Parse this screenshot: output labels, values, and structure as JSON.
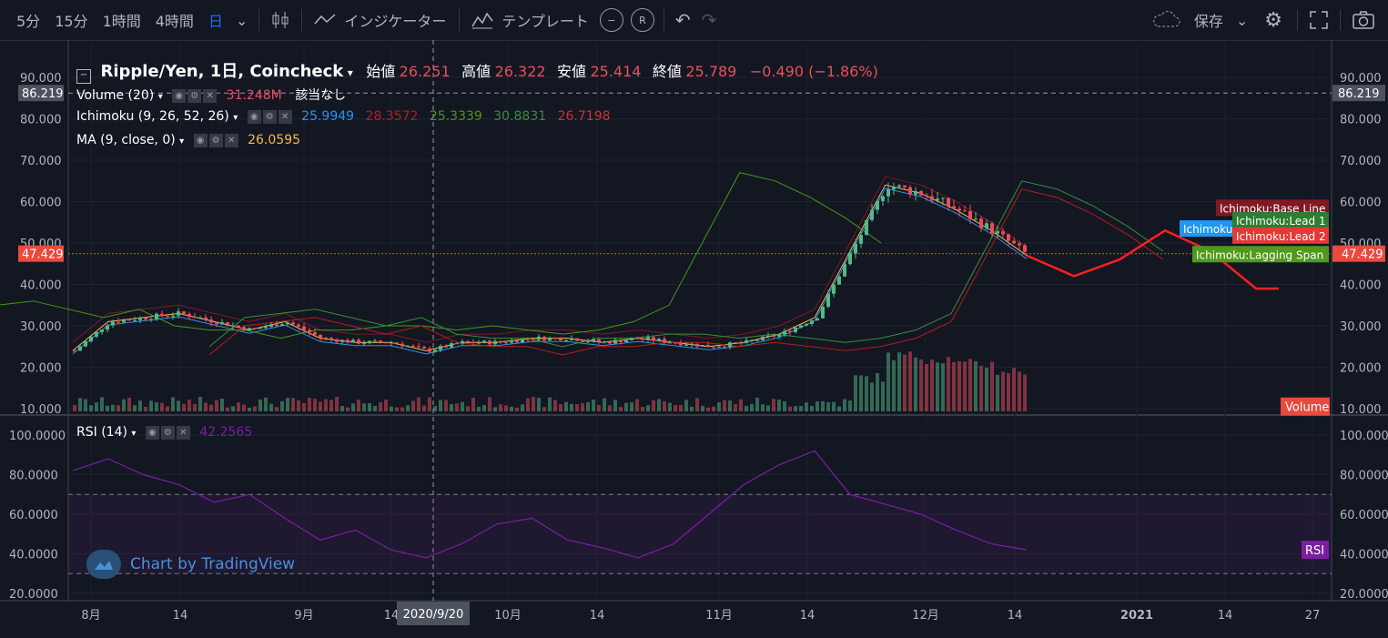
{
  "toolbar": {
    "intervals": [
      "5分",
      "15分",
      "1時間",
      "4時間",
      "日"
    ],
    "active_interval": "日",
    "indicators_label": "インジケーター",
    "template_label": "テンプレート",
    "save_label": "保存"
  },
  "legend": {
    "symbol": "Ripple/Yen, 1日, Coincheck",
    "open_label": "始値",
    "open": "26.251",
    "high_label": "高値",
    "high": "26.322",
    "low_label": "安値",
    "low": "25.414",
    "close_label": "終値",
    "close": "25.789",
    "change": "−0.490 (−1.86%)",
    "volume_name": "Volume (20)",
    "volume_value": "31.248M",
    "volume_extra": "該当なし",
    "ichimoku_name": "Ichimoku (9, 26, 52, 26)",
    "ichimoku_values": [
      "25.9949",
      "28.3572",
      "25.3339",
      "30.8831",
      "26.7198"
    ],
    "ma_name": "MA (9, close, 0)",
    "ma_value": "26.0595",
    "rsi_name": "RSI (14)",
    "rsi_value": "42.2565"
  },
  "watermark": "Chart by TradingView",
  "colors": {
    "background": "#131722",
    "up": "#53b987",
    "down": "#eb4d5c",
    "conversion": "#2196f3",
    "base": "#801922",
    "lagging": "#459915",
    "lead1": "#388e3c",
    "lead2": "#b71c1c",
    "ma": "#ffb74d",
    "rsi": "#7b1fa2",
    "price_marker": "#e84a3e"
  },
  "chart_data": [
    {
      "type": "candlestick",
      "title": "Ripple/Yen, 1日, Coincheck",
      "ylim": [
        10,
        90
      ],
      "y_ticks": [
        "90.000",
        "80.000",
        "70.000",
        "60.000",
        "50.000",
        "40.000",
        "30.000",
        "20.000",
        "10.000"
      ],
      "x_tick_labels": [
        "8月",
        "14",
        "9月",
        "14",
        "10月",
        "14",
        "11月",
        "14",
        "12月",
        "14",
        "2021",
        "14",
        "27"
      ],
      "crosshair_x_label": "2020/9/20",
      "crosshair_y_label": "86.219",
      "last_price_label": "47.429",
      "x": [
        "7/27",
        "8/2",
        "8/8",
        "8/14",
        "8/20",
        "8/26",
        "9/1",
        "9/7",
        "9/13",
        "9/19",
        "9/25",
        "10/1",
        "10/7",
        "10/13",
        "10/19",
        "10/25",
        "10/31",
        "11/6",
        "11/12",
        "11/18",
        "11/21",
        "11/24",
        "11/27",
        "12/1",
        "12/5",
        "12/9",
        "12/13",
        "12/17"
      ],
      "close": [
        24,
        31,
        32,
        33,
        31,
        29,
        31,
        27,
        26,
        26,
        24,
        26,
        26,
        27,
        27,
        26,
        27,
        26,
        25,
        26,
        28,
        32,
        48,
        64,
        62,
        58,
        53,
        47
      ],
      "series": [
        {
          "name": "Ichimoku:Base Line",
          "label": "Ichimoku:Base Line"
        },
        {
          "name": "Ichimoku",
          "label": "Ichimoku"
        },
        {
          "name": "Ichimoku:Lead 1",
          "label": "Ichimoku:Lead 1"
        },
        {
          "name": "Ichimoku:Lead 2",
          "label": "Ichimoku:Lead 2"
        },
        {
          "name": "Ichimoku:Lagging Span",
          "label": "Ichimoku:Lagging Span"
        }
      ],
      "volume_label": "Volume"
    },
    {
      "type": "line",
      "title": "RSI (14)",
      "ylim": [
        20,
        100
      ],
      "y_ticks": [
        "100.0000",
        "80.0000",
        "60.0000",
        "40.0000",
        "20.0000"
      ],
      "bands": [
        30,
        70
      ],
      "series": [
        {
          "name": "RSI",
          "values": [
            82,
            88,
            80,
            75,
            66,
            70,
            58,
            47,
            52,
            42,
            38,
            45,
            55,
            58,
            47,
            43,
            38,
            45,
            60,
            75,
            85,
            92,
            70,
            65,
            60,
            52,
            45,
            42
          ]
        }
      ]
    }
  ]
}
